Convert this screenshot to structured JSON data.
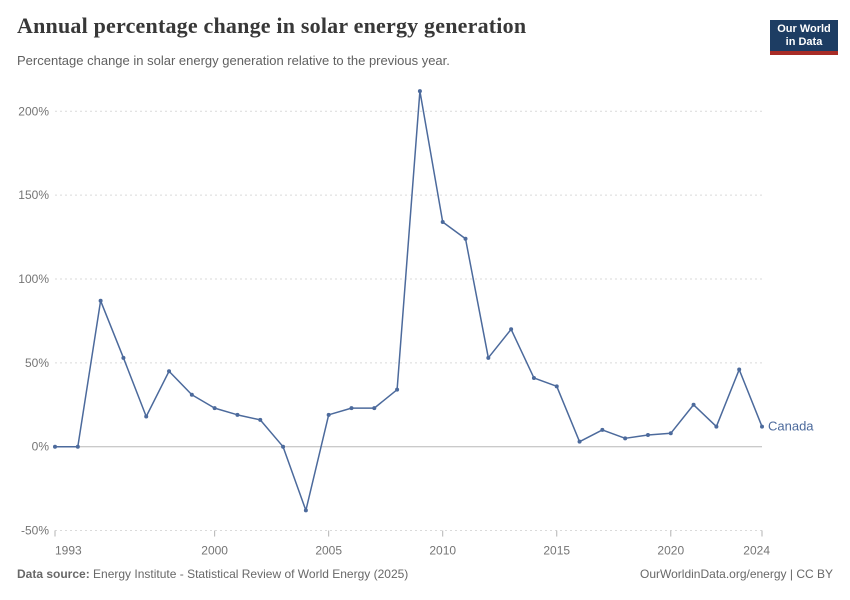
{
  "chart_data": {
    "type": "line",
    "title": "Annual percentage change in solar energy generation",
    "subtitle": "Percentage change in solar energy generation relative to the previous year.",
    "xlabel": "",
    "ylabel": "",
    "grid": "horizontal-dashed",
    "legend": "inline-end-label",
    "xlim": [
      1993,
      2024
    ],
    "ylim": [
      -50,
      213
    ],
    "x_ticks": [
      1993,
      2000,
      2005,
      2010,
      2015,
      2020,
      2024
    ],
    "y_ticks": [
      -50,
      0,
      50,
      100,
      150,
      200
    ],
    "y_tick_suffix": "%",
    "x": [
      1993,
      1994,
      1995,
      1996,
      1997,
      1998,
      1999,
      2000,
      2001,
      2002,
      2003,
      2004,
      2005,
      2006,
      2007,
      2008,
      2009,
      2010,
      2011,
      2012,
      2013,
      2014,
      2015,
      2016,
      2017,
      2018,
      2019,
      2020,
      2021,
      2022,
      2023,
      2024
    ],
    "series": [
      {
        "name": "Canada",
        "color": "#4C6A9C",
        "values": [
          0,
          0,
          87,
          53,
          18,
          45,
          31,
          23,
          19,
          16,
          0,
          -38,
          19,
          23,
          23,
          34,
          212,
          134,
          124,
          53,
          70,
          41,
          36,
          3,
          10,
          5,
          7,
          8,
          25,
          12,
          46,
          12
        ]
      }
    ]
  },
  "logo": {
    "line1": "Our World",
    "line2": "in Data"
  },
  "footer": {
    "source_label": "Data source:",
    "source_text": " Energy Institute - Statistical Review of World Energy (2025)",
    "credit": "OurWorldinData.org/energy | CC BY"
  },
  "colors": {
    "line": "#4C6A9C",
    "grid": "#dadada",
    "zero_line": "#b8b8b8",
    "tick_mark": "#b3b3b3",
    "axis_text": "#757575",
    "logo_bg": "#1d3d63",
    "logo_accent": "#a82c26"
  }
}
